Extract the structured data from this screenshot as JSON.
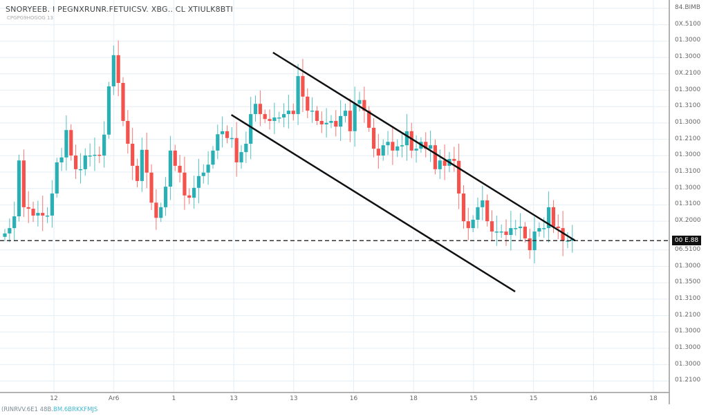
{
  "header": {
    "title": "SNORYEEB. I PEGNXRUNR.FETUICSV. XBG.. CL XTIULK8BTI",
    "subtitle": "CPGPG9HOGOG 13"
  },
  "footer": {
    "text": "(RINRVV.6E1 48B.",
    "accent_text": "BM.6BRKKFMJS"
  },
  "chart_data": {
    "type": "candlestick",
    "colors": {
      "up": "#2ab0b4",
      "down": "#f4524d",
      "grid": "#e3eef6",
      "channel": "#111111"
    },
    "ylim": [
      0,
      100
    ],
    "grid": true,
    "y_tick_labels": [
      "84.BIMB",
      "0X.5100",
      "01.3000",
      "01.3000",
      "0X.2100",
      "01.3000",
      "01.3100",
      "01.3000",
      "01.2100",
      "01.3000",
      "01.3100",
      "01.3000",
      "01.3100",
      "0X.2000",
      "06.5100",
      "01.3000",
      "01.3500",
      "01.3100",
      "01.2100",
      "01.3000",
      "01.3000",
      "01.3000",
      "01.2100"
    ],
    "x_tick_labels": [
      "12",
      "Ar6",
      "1",
      "13",
      "13",
      "16",
      "18",
      "15",
      "15",
      "16",
      "18"
    ],
    "first_open": 39.5,
    "closes": [
      40.4,
      41.8,
      44.9,
      59.6,
      47.3,
      46.9,
      45.1,
      45.8,
      45.1,
      45.1,
      50.9,
      59.1,
      60.4,
      67.6,
      60.9,
      57.3,
      57.3,
      60.9,
      60.9,
      61.1,
      60.9,
      66.4,
      79.1,
      87.3,
      80.0,
      70.0,
      64.0,
      58.2,
      54.2,
      62.4,
      56.4,
      48.5,
      44.5,
      47.3,
      52.7,
      62.2,
      58.2,
      56.4,
      50.4,
      49.8,
      52.4,
      55.5,
      56.4,
      58.5,
      62.2,
      66.5,
      67.3,
      65.5,
      65.5,
      59.1,
      61.8,
      64.0,
      71.8,
      74.5,
      71.8,
      70.5,
      70.0,
      70.9,
      70.9,
      71.8,
      72.7,
      71.8,
      81.8,
      76.4,
      72.7,
      72.7,
      70.0,
      69.1,
      69.5,
      70.0,
      68.5,
      71.3,
      72.7,
      67.3,
      74.5,
      75.5,
      72.7,
      68.2,
      62.7,
      60.9,
      63.6,
      64.5,
      62.2,
      63.3,
      63.6,
      67.3,
      62.2,
      62.7,
      64.5,
      62.7,
      63.6,
      57.3,
      59.6,
      58.2,
      60.0,
      59.5,
      50.9,
      43.6,
      41.8,
      44.0,
      47.3,
      49.1,
      43.6,
      40.9,
      40.9,
      40.9,
      40.0,
      41.8,
      41.8,
      42.2,
      39.1,
      36.0,
      40.9,
      41.8,
      41.8,
      47.3,
      42.2,
      41.8,
      38.5,
      38.5,
      39.1
    ],
    "current_price_label": "00 E.88",
    "current_price": 38.5,
    "trendlines": [
      {
        "name": "upper-channel",
        "from": [
          56.7,
          88.0
        ],
        "to": [
          120.6,
          38.5
        ]
      },
      {
        "name": "lower-channel",
        "from": [
          47.9,
          71.6
        ],
        "to": [
          107.9,
          25.1
        ]
      }
    ]
  }
}
